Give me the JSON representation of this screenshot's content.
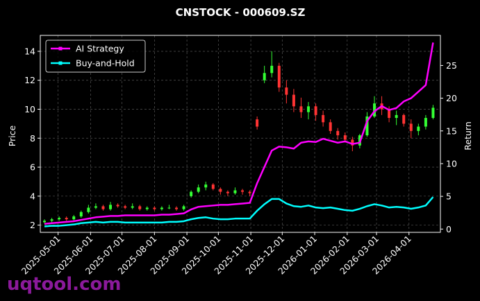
{
  "chart_data": {
    "type": "candlestick",
    "title": "CNSTOCK - 000609.SZ",
    "y_label": "Price",
    "y2_label": "Return",
    "watermark": "uqtool.com",
    "x": [
      "2025-04-18",
      "2025-04-25",
      "2025-05-02",
      "2025-05-09",
      "2025-05-16",
      "2025-05-23",
      "2025-05-30",
      "2025-06-06",
      "2025-06-13",
      "2025-06-20",
      "2025-06-27",
      "2025-07-04",
      "2025-07-11",
      "2025-07-18",
      "2025-07-25",
      "2025-08-01",
      "2025-08-08",
      "2025-08-15",
      "2025-08-22",
      "2025-08-29",
      "2025-09-05",
      "2025-09-12",
      "2025-09-19",
      "2025-09-26",
      "2025-10-03",
      "2025-10-10",
      "2025-10-17",
      "2025-10-24",
      "2025-10-31",
      "2025-11-07",
      "2025-11-14",
      "2025-11-21",
      "2025-11-28",
      "2025-12-05",
      "2025-12-12",
      "2025-12-19",
      "2025-12-26",
      "2026-01-02",
      "2026-01-09",
      "2026-01-16",
      "2026-01-23",
      "2026-01-30",
      "2026-02-06",
      "2026-02-13",
      "2026-02-20",
      "2026-02-27",
      "2026-03-06",
      "2026-03-13",
      "2026-03-20",
      "2026-03-27",
      "2026-04-03",
      "2026-04-10",
      "2026-04-17",
      "2026-04-24"
    ],
    "open": [
      2.2,
      2.3,
      2.4,
      2.5,
      2.4,
      2.6,
      2.9,
      3.2,
      3.3,
      3.1,
      3.4,
      3.3,
      3.2,
      3.3,
      3.1,
      3.2,
      3.1,
      3.2,
      3.2,
      3.1,
      4.0,
      4.3,
      4.6,
      4.8,
      4.5,
      4.3,
      4.2,
      4.4,
      4.3,
      9.3,
      12.0,
      12.5,
      13.0,
      11.5,
      11.0,
      10.2,
      9.8,
      10.2,
      9.6,
      9.1,
      8.5,
      8.2,
      7.9,
      7.5,
      8.2,
      9.5,
      10.4,
      10.0,
      9.4,
      9.6,
      9.0,
      8.5,
      8.8,
      9.4
    ],
    "high": [
      2.4,
      2.5,
      2.6,
      2.6,
      2.7,
      3.0,
      3.4,
      3.5,
      3.4,
      3.6,
      3.5,
      3.4,
      3.5,
      3.4,
      3.3,
      3.3,
      3.3,
      3.4,
      3.3,
      3.4,
      4.4,
      4.8,
      5.0,
      4.9,
      4.6,
      4.4,
      4.6,
      4.5,
      4.4,
      9.5,
      13.0,
      14.0,
      13.2,
      12.0,
      11.4,
      10.8,
      10.5,
      10.4,
      9.9,
      9.3,
      8.7,
      8.4,
      8.1,
      8.3,
      9.8,
      10.9,
      10.9,
      10.2,
      9.9,
      9.7,
      9.3,
      9.0,
      9.6,
      10.3
    ],
    "low": [
      2.1,
      2.2,
      2.3,
      2.3,
      2.3,
      2.5,
      2.8,
      3.1,
      3.0,
      3.0,
      3.2,
      3.1,
      3.1,
      3.0,
      3.0,
      3.0,
      3.0,
      3.1,
      3.0,
      3.0,
      3.9,
      4.2,
      4.4,
      4.4,
      4.1,
      4.0,
      4.1,
      4.1,
      4.0,
      8.6,
      11.8,
      12.2,
      11.2,
      10.4,
      9.8,
      9.4,
      9.3,
      9.2,
      8.8,
      8.3,
      7.9,
      7.7,
      7.1,
      7.3,
      8.1,
      9.4,
      9.6,
      9.1,
      8.9,
      8.8,
      8.0,
      8.2,
      8.6,
      9.3
    ],
    "close": [
      2.3,
      2.4,
      2.5,
      2.4,
      2.6,
      2.9,
      3.2,
      3.3,
      3.1,
      3.4,
      3.3,
      3.2,
      3.3,
      3.1,
      3.2,
      3.1,
      3.2,
      3.2,
      3.1,
      3.3,
      4.3,
      4.6,
      4.8,
      4.5,
      4.3,
      4.2,
      4.4,
      4.3,
      4.2,
      8.8,
      12.5,
      13.0,
      11.5,
      11.0,
      10.2,
      9.8,
      10.2,
      9.6,
      9.1,
      8.5,
      8.2,
      7.9,
      7.5,
      8.2,
      9.5,
      10.4,
      10.0,
      9.4,
      9.6,
      9.0,
      8.5,
      8.8,
      9.4,
      10.1
    ],
    "up_color": "#33ff33",
    "down_color": "#ff3333",
    "series": [
      {
        "name": "AI Strategy",
        "color": "#ff00ff",
        "axis": "y2",
        "type": "line",
        "values": [
          0.8,
          0.9,
          1.0,
          1.1,
          1.2,
          1.4,
          1.6,
          1.8,
          1.9,
          2.0,
          2.0,
          2.1,
          2.1,
          2.1,
          2.1,
          2.1,
          2.2,
          2.2,
          2.3,
          2.4,
          3.0,
          3.4,
          3.5,
          3.6,
          3.7,
          3.7,
          3.8,
          3.9,
          4.0,
          7.0,
          9.5,
          12.0,
          12.6,
          12.5,
          12.3,
          13.2,
          13.4,
          13.3,
          13.8,
          13.5,
          13.2,
          13.4,
          13.0,
          13.2,
          16.5,
          18.0,
          18.8,
          18.2,
          18.5,
          19.5,
          20.0,
          21.0,
          22.0,
          28.5
        ]
      },
      {
        "name": "Buy-and-Hold",
        "color": "#00ffff",
        "axis": "y2",
        "type": "line",
        "values": [
          0.4,
          0.5,
          0.5,
          0.6,
          0.7,
          0.9,
          1.0,
          1.1,
          1.0,
          1.1,
          1.1,
          1.0,
          1.0,
          1.0,
          1.0,
          1.0,
          1.0,
          1.1,
          1.1,
          1.2,
          1.5,
          1.7,
          1.8,
          1.6,
          1.5,
          1.5,
          1.6,
          1.6,
          1.6,
          2.8,
          3.8,
          4.6,
          4.6,
          3.9,
          3.5,
          3.4,
          3.6,
          3.3,
          3.2,
          3.3,
          3.1,
          2.9,
          2.8,
          3.1,
          3.5,
          3.8,
          3.6,
          3.3,
          3.4,
          3.3,
          3.1,
          3.3,
          3.6,
          4.9
        ]
      }
    ],
    "xlim": [
      "2025-04-14",
      "2026-05-01"
    ],
    "xticks": [
      "2025-05-01",
      "2025-06-01",
      "2025-07-01",
      "2025-08-01",
      "2025-09-01",
      "2025-10-01",
      "2025-11-01",
      "2025-12-01",
      "2026-01-01",
      "2026-02-01",
      "2026-03-01",
      "2026-04-01"
    ],
    "ylim": [
      1.5,
      15.1
    ],
    "yticks": [
      2,
      4,
      6,
      8,
      10,
      12,
      14
    ],
    "y2lim": [
      -0.5,
      29.6
    ],
    "y2ticks": [
      0,
      5,
      10,
      15,
      20,
      25
    ],
    "grid": true,
    "legend": "upper left"
  }
}
